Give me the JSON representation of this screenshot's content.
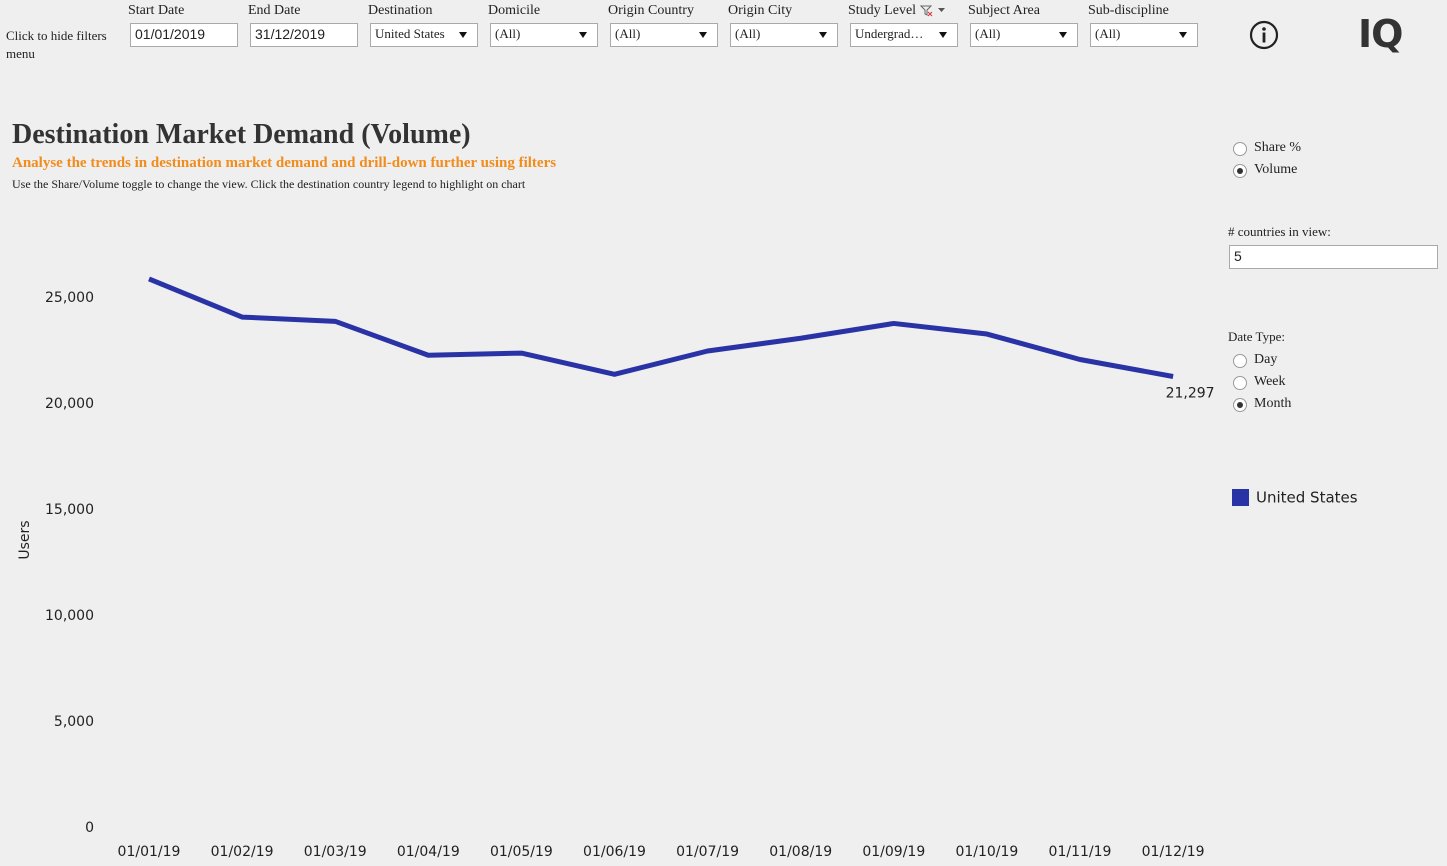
{
  "filters_menu": {
    "hide_label": "Click to hide filters menu"
  },
  "filters": [
    {
      "label": "Start Date",
      "value": "01/01/2019",
      "kind": "date"
    },
    {
      "label": "End Date",
      "value": "31/12/2019",
      "kind": "date"
    },
    {
      "label": "Destination",
      "value": "United States",
      "kind": "dropdown"
    },
    {
      "label": "Domicile",
      "value": "(All)",
      "kind": "dropdown"
    },
    {
      "label": "Origin Country",
      "value": "(All)",
      "kind": "dropdown"
    },
    {
      "label": "Origin City",
      "value": "(All)",
      "kind": "dropdown"
    },
    {
      "label": "Study Level",
      "value": "Undergrad…",
      "kind": "dropdown",
      "filtered": true
    },
    {
      "label": "Subject Area",
      "value": "(All)",
      "kind": "dropdown"
    },
    {
      "label": "Sub-discipline",
      "value": "(All)",
      "kind": "dropdown"
    }
  ],
  "logo": "IQ",
  "view_toggle": {
    "options": [
      {
        "label": "Share %",
        "selected": false
      },
      {
        "label": "Volume",
        "selected": true
      }
    ]
  },
  "countries_in_view": {
    "label": "# countries in view:",
    "value": "5"
  },
  "date_type": {
    "label": "Date Type:",
    "options": [
      {
        "label": "Day",
        "selected": false
      },
      {
        "label": "Week",
        "selected": false
      },
      {
        "label": "Month",
        "selected": true
      }
    ]
  },
  "chart_data": {
    "type": "line",
    "title": "Destination Market Demand (Volume)",
    "subtitle": "Analyse the trends in destination market demand and drill-down further using filters",
    "note": "Use the Share/Volume toggle to change the view. Click the destination country legend to highlight on chart",
    "y_label": "Users",
    "categories": [
      "01/01/19",
      "01/02/19",
      "01/03/19",
      "01/04/19",
      "01/05/19",
      "01/06/19",
      "01/07/19",
      "01/08/19",
      "01/09/19",
      "01/10/19",
      "01/11/19",
      "01/12/19"
    ],
    "series": [
      {
        "name": "United States",
        "color": "#2a33a6",
        "values": [
          25900,
          24100,
          23900,
          22300,
          22400,
          21400,
          22500,
          23100,
          23800,
          23300,
          22100,
          21297
        ],
        "value_labels": [
          null,
          null,
          null,
          null,
          null,
          null,
          null,
          null,
          null,
          null,
          null,
          "21,297"
        ]
      }
    ],
    "ylim": [
      0,
      28000
    ],
    "yticks": [
      0,
      {
        "value": 5000,
        "label": "5,000"
      },
      {
        "value": 10000,
        "label": "10,000"
      },
      {
        "value": 15000,
        "label": "15,000"
      },
      {
        "value": 20000,
        "label": "20,000"
      },
      {
        "value": 25000,
        "label": "25,000"
      }
    ],
    "grid": false
  }
}
